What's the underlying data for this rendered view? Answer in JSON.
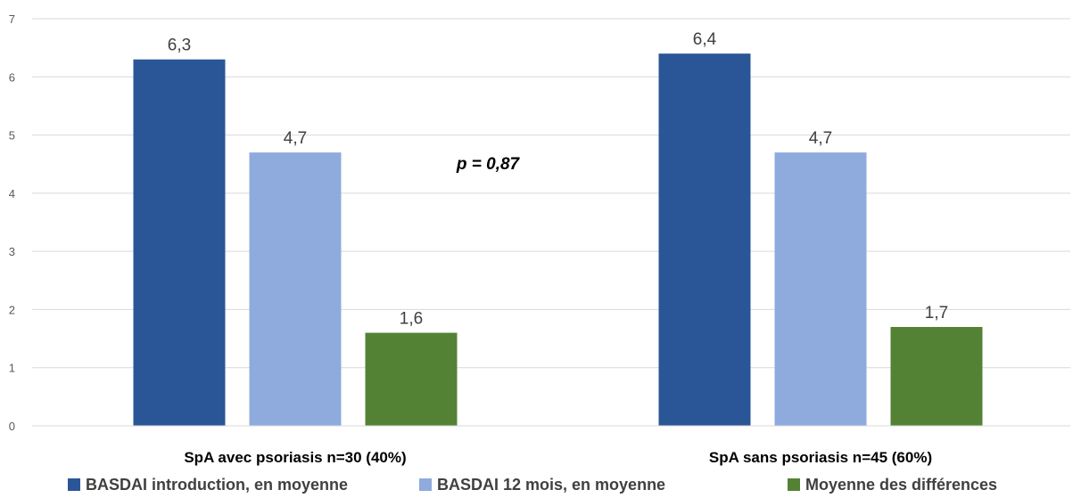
{
  "chart_data": {
    "type": "bar",
    "categories": [
      "SpA avec psoriasis n=30 (40%)",
      "SpA sans psoriasis n=45 (60%)"
    ],
    "series": [
      {
        "name": "BASDAI introduction, en moyenne",
        "values": [
          6.3,
          6.4
        ],
        "labels": [
          "6,3",
          "6,4"
        ],
        "color": "#2A5698"
      },
      {
        "name": "BASDAI 12 mois, en moyenne",
        "values": [
          4.7,
          4.7
        ],
        "labels": [
          "4,7",
          "4,7"
        ],
        "color": "#8FAADC"
      },
      {
        "name": "Moyenne des différences",
        "values": [
          1.6,
          1.7
        ],
        "labels": [
          "1,6",
          "1,7"
        ],
        "color": "#548235"
      }
    ],
    "ylim": [
      0,
      7
    ],
    "yticks": [
      0,
      1,
      2,
      3,
      4,
      5,
      6,
      7
    ],
    "grid": true,
    "legend_position": "bottom",
    "annotation": "p = 0,87"
  }
}
